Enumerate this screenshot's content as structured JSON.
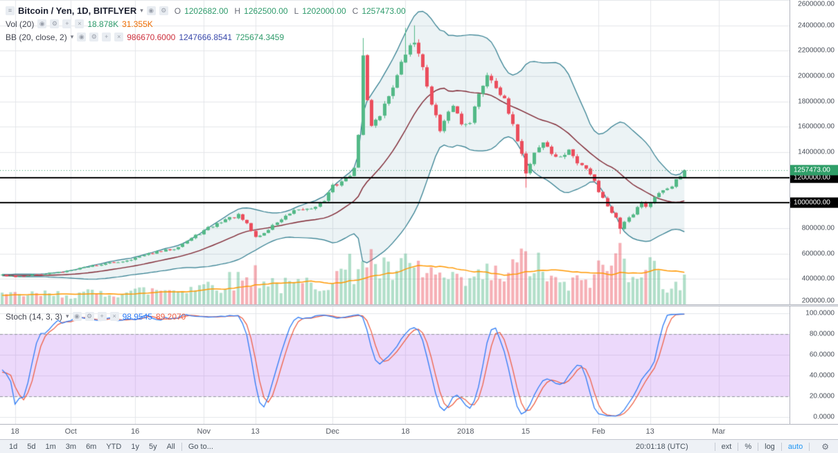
{
  "header": {
    "symbol": "Bitcoin / Yen, 1D, BITFLYER",
    "ohlc": {
      "o_label": "O",
      "o": "1202682.00",
      "h_label": "H",
      "h": "1262500.00",
      "l_label": "L",
      "l": "1202000.00",
      "c_label": "C",
      "c": "1257473.00"
    },
    "vol": {
      "label": "Vol (20)",
      "value": "18.878K",
      "ma": "31.355K"
    },
    "bb": {
      "label": "BB (20, close, 2)",
      "v1": "986670.6000",
      "v2": "1247666.8541",
      "v3": "725674.3459"
    }
  },
  "stoch_legend": {
    "label": "Stoch (14, 3, 3)",
    "k": "98.9545",
    "d": "89.2070"
  },
  "icons": {
    "menu": "≡",
    "caret": "▾",
    "eye": "◉",
    "gear": "⚙",
    "plus": "+",
    "close": "×"
  },
  "toolbar": {
    "ranges": [
      "1d",
      "5d",
      "1m",
      "3m",
      "6m",
      "YTD",
      "1y",
      "5y",
      "All"
    ],
    "goto": "Go to...",
    "clock": "20:01:18 (UTC)",
    "ext": "ext",
    "percent": "%",
    "log": "log",
    "auto": "auto"
  },
  "chart_data": {
    "type": "candlestick",
    "title": "Bitcoin / Yen, 1D, BITFLYER",
    "legend_position": "top-left",
    "grid": true,
    "price_axis": {
      "min": 200000,
      "max": 2600000,
      "tick_step": 200000
    },
    "price_ticks": [
      "2600000.00",
      "2400000.00",
      "2200000.00",
      "2000000.00",
      "1800000.00",
      "1600000.00",
      "1400000.00",
      "1200000.00",
      "1000000.00",
      "800000.00",
      "600000.00",
      "400000.00",
      "200000.00"
    ],
    "stoch_ticks": [
      "100.0000",
      "80.0000",
      "60.0000",
      "40.0000",
      "20.0000",
      "0.0000"
    ],
    "time_labels": [
      {
        "text": "18",
        "i": 3
      },
      {
        "text": "Oct",
        "i": 16
      },
      {
        "text": "16",
        "i": 31
      },
      {
        "text": "Nov",
        "i": 47
      },
      {
        "text": "13",
        "i": 59
      },
      {
        "text": "Dec",
        "i": 77
      },
      {
        "text": "18",
        "i": 94
      },
      {
        "text": "2018",
        "i": 108
      },
      {
        "text": "15",
        "i": 122
      },
      {
        "text": "Feb",
        "i": 139
      },
      {
        "text": "13",
        "i": 151
      },
      {
        "text": "Mar",
        "i": 167
      }
    ],
    "grid_indices": [
      3,
      16,
      31,
      47,
      59,
      77,
      94,
      108,
      122,
      139,
      151,
      167
    ],
    "total_slots": 184,
    "num_candles": 160,
    "pre_candles": 20,
    "noise_seed": 42,
    "close_anchors": [
      [
        0,
        430000
      ],
      [
        3,
        420000
      ],
      [
        8,
        435000
      ],
      [
        14,
        455000
      ],
      [
        16,
        475000
      ],
      [
        22,
        510000
      ],
      [
        28,
        540000
      ],
      [
        31,
        565000
      ],
      [
        35,
        605000
      ],
      [
        40,
        640000
      ],
      [
        44,
        720000
      ],
      [
        48,
        800000
      ],
      [
        52,
        870000
      ],
      [
        55,
        900000
      ],
      [
        57,
        830000
      ],
      [
        59,
        730000
      ],
      [
        61,
        760000
      ],
      [
        64,
        850000
      ],
      [
        68,
        930000
      ],
      [
        72,
        960000
      ],
      [
        75,
        1020000
      ],
      [
        77,
        1130000
      ],
      [
        80,
        1190000
      ],
      [
        82,
        1260000
      ],
      [
        83,
        1550000
      ],
      [
        84,
        2150000
      ],
      [
        85,
        1800000
      ],
      [
        86,
        1620000
      ],
      [
        88,
        1700000
      ],
      [
        90,
        1850000
      ],
      [
        92,
        2000000
      ],
      [
        94,
        2180000
      ],
      [
        96,
        2270000
      ],
      [
        97,
        2200000
      ],
      [
        98,
        2050000
      ],
      [
        100,
        1800000
      ],
      [
        102,
        1560000
      ],
      [
        104,
        1700000
      ],
      [
        105,
        1780000
      ],
      [
        107,
        1620000
      ],
      [
        109,
        1650000
      ],
      [
        111,
        1850000
      ],
      [
        113,
        2020000
      ],
      [
        115,
        1930000
      ],
      [
        117,
        1800000
      ],
      [
        119,
        1600000
      ],
      [
        121,
        1400000
      ],
      [
        122,
        1230000
      ],
      [
        124,
        1400000
      ],
      [
        126,
        1480000
      ],
      [
        128,
        1390000
      ],
      [
        130,
        1350000
      ],
      [
        132,
        1420000
      ],
      [
        134,
        1310000
      ],
      [
        136,
        1280000
      ],
      [
        138,
        1180000
      ],
      [
        139,
        1090000
      ],
      [
        141,
        980000
      ],
      [
        143,
        880000
      ],
      [
        144,
        800000
      ],
      [
        145,
        860000
      ],
      [
        147,
        920000
      ],
      [
        149,
        1010000
      ],
      [
        150,
        970000
      ],
      [
        152,
        1040000
      ],
      [
        154,
        1090000
      ],
      [
        156,
        1140000
      ],
      [
        158,
        1210000
      ],
      [
        159,
        1257473
      ]
    ],
    "high_overrides": [
      [
        84,
        2300000
      ],
      [
        94,
        2380000
      ],
      [
        96,
        2400000
      ]
    ],
    "low_overrides": [
      [
        122,
        1120000
      ],
      [
        144,
        755000
      ]
    ],
    "last_candle": {
      "open": 1202682,
      "high": 1262500,
      "low": 1202000,
      "close": 1257473
    },
    "volume_anchors": [
      [
        0,
        6
      ],
      [
        20,
        7
      ],
      [
        40,
        10
      ],
      [
        55,
        16
      ],
      [
        59,
        20
      ],
      [
        65,
        12
      ],
      [
        75,
        15
      ],
      [
        83,
        26
      ],
      [
        84,
        34
      ],
      [
        86,
        28
      ],
      [
        90,
        20
      ],
      [
        94,
        24
      ],
      [
        98,
        22
      ],
      [
        102,
        18
      ],
      [
        106,
        14
      ],
      [
        110,
        16
      ],
      [
        113,
        20
      ],
      [
        117,
        18
      ],
      [
        122,
        30
      ],
      [
        126,
        22
      ],
      [
        130,
        12
      ],
      [
        134,
        14
      ],
      [
        138,
        20
      ],
      [
        141,
        24
      ],
      [
        144,
        34
      ],
      [
        146,
        26
      ],
      [
        149,
        28
      ],
      [
        152,
        22
      ],
      [
        155,
        14
      ],
      [
        158,
        12
      ],
      [
        159,
        18.878
      ]
    ],
    "volume_max_k": 36,
    "last_volume_k": 18.878,
    "bollinger": {
      "length": 20,
      "mult": 2
    },
    "stochastic": {
      "k": 14,
      "smooth": 3,
      "d": 3
    },
    "price_lines": [
      {
        "value": 1200000,
        "label": "1200000.00",
        "color": "#000000"
      },
      {
        "value": 1000000,
        "label": "1000000.00",
        "color": "#000000"
      }
    ],
    "current_price": {
      "value": 1257473,
      "label": "1257473.00",
      "color": "#2f9e68"
    },
    "colors": {
      "up": "#53b987",
      "down": "#eb4d5c",
      "vol_up": "rgba(83,185,135,0.45)",
      "vol_down": "rgba(235,77,92,0.45)",
      "vol_ma": "#ff9800",
      "bb_band": "#2b7a8c",
      "bb_basis": "#7e2430",
      "bb_fill": "rgba(43,122,140,0.09)",
      "grid": "#e4e6ea",
      "stoch_k": "#2e7cf6",
      "stoch_d": "#ef6045",
      "stoch_fill": "rgba(186,120,240,0.28)",
      "stoch_dash": "#90949c"
    }
  }
}
